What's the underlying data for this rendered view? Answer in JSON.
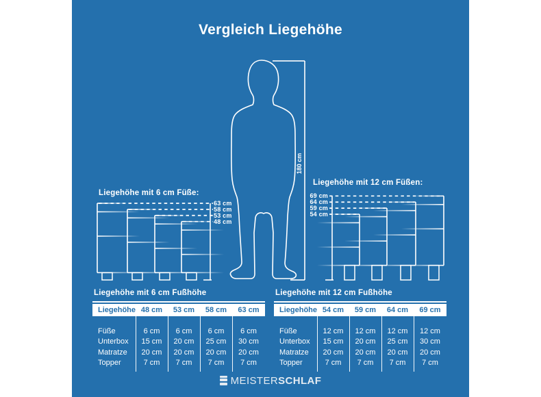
{
  "title": "Vergleich Liegehöhe",
  "colors": {
    "background": "#2470ad",
    "line": "#ffffff",
    "table_header_text": "#2470ad"
  },
  "person": {
    "height_label": "180 cm"
  },
  "diagram_left": {
    "label": "Liegehöhe mit 6 cm Füße:",
    "heights": [
      "63 cm",
      "58 cm",
      "53 cm",
      "48 cm"
    ]
  },
  "diagram_right": {
    "label": "Liegehöhe mit 12 cm Füßen:",
    "heights": [
      "69 cm",
      "64 cm",
      "59 cm",
      "54 cm"
    ]
  },
  "tables": [
    {
      "title": "Liegehöhe mit 6 cm Fußhöhe",
      "header": [
        "Liegehöhe",
        "48 cm",
        "53 cm",
        "58 cm",
        "63 cm"
      ],
      "rows": [
        {
          "label": "Füße",
          "values": [
            "6 cm",
            "6 cm",
            "6 cm",
            "6 cm"
          ]
        },
        {
          "label": "Unterbox",
          "values": [
            "15 cm",
            "20 cm",
            "25 cm",
            "30 cm"
          ]
        },
        {
          "label": "Matratze",
          "values": [
            "20 cm",
            "20 cm",
            "20 cm",
            "20 cm"
          ]
        },
        {
          "label": "Topper",
          "values": [
            "7 cm",
            "7 cm",
            "7 cm",
            "7 cm"
          ]
        }
      ]
    },
    {
      "title": "Liegehöhe mit 12 cm Fußhöhe",
      "header": [
        "Liegehöhe",
        "54 cm",
        "59 cm",
        "64 cm",
        "69 cm"
      ],
      "rows": [
        {
          "label": "Füße",
          "values": [
            "12 cm",
            "12 cm",
            "12 cm",
            "12 cm"
          ]
        },
        {
          "label": "Unterbox",
          "values": [
            "15 cm",
            "20 cm",
            "25 cm",
            "30 cm"
          ]
        },
        {
          "label": "Matratze",
          "values": [
            "20 cm",
            "20 cm",
            "20 cm",
            "20 cm"
          ]
        },
        {
          "label": "Topper",
          "values": [
            "7 cm",
            "7 cm",
            "7 cm",
            "7 cm"
          ]
        }
      ]
    }
  ],
  "logo": {
    "prefix": "MEISTER",
    "suffix": "SCHLAF"
  },
  "chart_data": {
    "type": "table",
    "title": "Vergleich Liegehöhe",
    "person_height_cm": 180,
    "groups": [
      {
        "label": "Liegehöhe mit 6 cm Fußhöhe",
        "liegehoehen_cm": [
          48,
          53,
          58,
          63
        ],
        "layers": {
          "Füße": [
            6,
            6,
            6,
            6
          ],
          "Unterbox": [
            15,
            20,
            25,
            30
          ],
          "Matratze": [
            20,
            20,
            20,
            20
          ],
          "Topper": [
            7,
            7,
            7,
            7
          ]
        }
      },
      {
        "label": "Liegehöhe mit 12 cm Fußhöhe",
        "liegehoehen_cm": [
          54,
          59,
          64,
          69
        ],
        "layers": {
          "Füße": [
            12,
            12,
            12,
            12
          ],
          "Unterbox": [
            15,
            20,
            25,
            30
          ],
          "Matratze": [
            20,
            20,
            20,
            20
          ],
          "Topper": [
            7,
            7,
            7,
            7
          ]
        }
      }
    ]
  }
}
